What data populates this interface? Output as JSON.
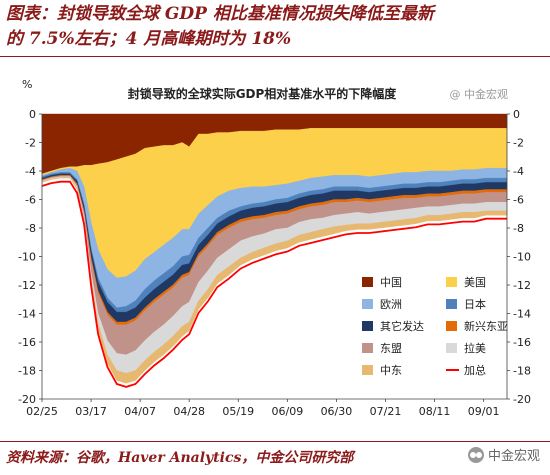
{
  "heading": {
    "line1": "图表：封锁导致全球 GDP 相比基准情况损失降低至最新",
    "line2": "的 7.5%左右；4 月高峰期时为 18%"
  },
  "source": "资料来源：谷歌，Haver Analytics，中金公司研究部",
  "brand": "中金宏观",
  "chart_data": {
    "type": "area",
    "title": "封锁导致的全球实际GDP相对基准水平的下降幅度",
    "watermark": "@ 中金宏观",
    "y_unit": "%",
    "ylim": [
      -20,
      0
    ],
    "yticks": [
      0,
      -2,
      -4,
      -6,
      -8,
      -10,
      -12,
      -14,
      -16,
      -18,
      -20
    ],
    "xticks": [
      "02/25",
      "03/17",
      "04/07",
      "04/28",
      "05/19",
      "06/09",
      "06/30",
      "07/21",
      "08/11",
      "09/01"
    ],
    "xticks_day": [
      0,
      21,
      42,
      63,
      84,
      105,
      126,
      147,
      168,
      189
    ],
    "x_days": [
      0,
      4,
      8,
      12,
      15,
      18,
      21,
      24,
      28,
      32,
      36,
      40,
      44,
      48,
      52,
      56,
      60,
      63,
      67,
      71,
      75,
      80,
      85,
      90,
      95,
      100,
      105,
      110,
      115,
      120,
      125,
      130,
      135,
      140,
      145,
      150,
      155,
      160,
      165,
      170,
      175,
      180,
      185,
      190,
      195,
      199
    ],
    "legend": [
      {
        "key": "china",
        "label": "中国",
        "color": "#8b2500"
      },
      {
        "key": "us",
        "label": "美国",
        "color": "#fcd04a"
      },
      {
        "key": "europe",
        "label": "欧洲",
        "color": "#8db4e2"
      },
      {
        "key": "japan",
        "label": "日本",
        "color": "#4f81bd"
      },
      {
        "key": "other_adv",
        "label": "其它发达",
        "color": "#1f3864"
      },
      {
        "key": "nie",
        "label": "新兴东亚",
        "color": "#e36c09"
      },
      {
        "key": "asean",
        "label": "东盟",
        "color": "#c0928a"
      },
      {
        "key": "latam",
        "label": "拉美",
        "color": "#d9d9d9"
      },
      {
        "key": "middle_east",
        "label": "中东",
        "color": "#e6b870"
      },
      {
        "key": "total",
        "label": "加总",
        "color": "#ff0000"
      }
    ],
    "series": [
      {
        "key": "china",
        "name": "中国",
        "values": [
          -4.2,
          -4.0,
          -3.8,
          -3.7,
          -3.7,
          -3.6,
          -3.6,
          -3.5,
          -3.4,
          -3.2,
          -3.0,
          -2.8,
          -2.4,
          -2.3,
          -2.2,
          -2.2,
          -2.0,
          -2.3,
          -1.4,
          -1.4,
          -1.3,
          -1.3,
          -1.2,
          -1.2,
          -1.2,
          -1.1,
          -1.1,
          -1.1,
          -1.0,
          -1.0,
          -1.0,
          -1.0,
          -1.0,
          -1.0,
          -1.0,
          -1.0,
          -1.0,
          -1.0,
          -1.0,
          -1.0,
          -1.0,
          -1.0,
          -1.0,
          -1.0,
          -1.0,
          -1.0
        ]
      },
      {
        "key": "us",
        "name": "美国",
        "values": [
          -0.1,
          -0.1,
          -0.1,
          -0.1,
          -0.3,
          -1.5,
          -4.0,
          -6.0,
          -7.5,
          -8.3,
          -8.4,
          -8.2,
          -7.8,
          -7.4,
          -7.0,
          -6.5,
          -6.1,
          -5.8,
          -5.6,
          -5.0,
          -4.5,
          -4.1,
          -4.0,
          -3.9,
          -3.9,
          -3.9,
          -3.8,
          -3.6,
          -3.5,
          -3.4,
          -3.3,
          -3.3,
          -3.3,
          -3.4,
          -3.3,
          -3.2,
          -3.1,
          -3.1,
          -3.0,
          -3.0,
          -3.0,
          -2.9,
          -2.9,
          -2.8,
          -2.8,
          -2.8
        ]
      },
      {
        "key": "europe",
        "name": "欧洲",
        "values": [
          -0.1,
          -0.1,
          -0.2,
          -0.3,
          -0.6,
          -1.2,
          -1.8,
          -2.0,
          -2.0,
          -2.1,
          -2.1,
          -2.1,
          -2.1,
          -2.0,
          -2.0,
          -2.0,
          -1.9,
          -1.8,
          -1.7,
          -1.6,
          -1.5,
          -1.4,
          -1.3,
          -1.2,
          -1.1,
          -1.0,
          -1.0,
          -0.9,
          -0.9,
          -0.9,
          -0.8,
          -0.8,
          -0.8,
          -0.8,
          -0.8,
          -0.8,
          -0.8,
          -0.8,
          -0.8,
          -0.8,
          -0.7,
          -0.7,
          -0.7,
          -0.7,
          -0.7,
          -0.7
        ]
      },
      {
        "key": "japan",
        "name": "日本",
        "values": [
          -0.1,
          -0.1,
          -0.1,
          -0.1,
          -0.1,
          -0.2,
          -0.2,
          -0.3,
          -0.3,
          -0.3,
          -0.4,
          -0.5,
          -0.6,
          -0.6,
          -0.6,
          -0.6,
          -0.6,
          -0.6,
          -0.5,
          -0.5,
          -0.4,
          -0.4,
          -0.3,
          -0.3,
          -0.3,
          -0.3,
          -0.3,
          -0.3,
          -0.3,
          -0.3,
          -0.3,
          -0.3,
          -0.3,
          -0.3,
          -0.3,
          -0.3,
          -0.3,
          -0.3,
          -0.3,
          -0.3,
          -0.3,
          -0.3,
          -0.3,
          -0.3,
          -0.3,
          -0.3
        ]
      },
      {
        "key": "other_adv",
        "name": "其它发达",
        "values": [
          -0.1,
          -0.1,
          -0.1,
          -0.1,
          -0.2,
          -0.3,
          -0.5,
          -0.6,
          -0.7,
          -0.7,
          -0.7,
          -0.7,
          -0.7,
          -0.7,
          -0.7,
          -0.7,
          -0.7,
          -0.6,
          -0.6,
          -0.6,
          -0.6,
          -0.6,
          -0.6,
          -0.6,
          -0.6,
          -0.6,
          -0.6,
          -0.6,
          -0.6,
          -0.6,
          -0.6,
          -0.6,
          -0.5,
          -0.5,
          -0.5,
          -0.5,
          -0.5,
          -0.5,
          -0.5,
          -0.5,
          -0.5,
          -0.5,
          -0.5,
          -0.5,
          -0.5,
          -0.5
        ]
      },
      {
        "key": "nie",
        "name": "新兴东亚",
        "values": [
          -0.05,
          -0.05,
          -0.05,
          -0.05,
          -0.1,
          -0.1,
          -0.2,
          -0.2,
          -0.2,
          -0.2,
          -0.2,
          -0.2,
          -0.2,
          -0.2,
          -0.2,
          -0.2,
          -0.2,
          -0.2,
          -0.2,
          -0.2,
          -0.2,
          -0.2,
          -0.2,
          -0.2,
          -0.2,
          -0.2,
          -0.2,
          -0.2,
          -0.2,
          -0.2,
          -0.2,
          -0.2,
          -0.2,
          -0.2,
          -0.2,
          -0.2,
          -0.2,
          -0.2,
          -0.2,
          -0.2,
          -0.2,
          -0.2,
          -0.2,
          -0.2,
          -0.2,
          -0.2
        ]
      },
      {
        "key": "asean",
        "name": "东盟",
        "values": [
          -0.05,
          -0.05,
          -0.05,
          -0.05,
          -0.1,
          -0.3,
          -0.8,
          -1.4,
          -1.8,
          -2.0,
          -2.1,
          -2.1,
          -2.1,
          -2.1,
          -2.1,
          -2.0,
          -2.0,
          -1.9,
          -1.8,
          -1.7,
          -1.6,
          -1.5,
          -1.3,
          -1.2,
          -1.1,
          -1.0,
          -1.0,
          -0.9,
          -0.9,
          -0.9,
          -0.9,
          -0.8,
          -0.8,
          -0.8,
          -0.8,
          -0.8,
          -0.8,
          -0.7,
          -0.7,
          -0.7,
          -0.7,
          -0.7,
          -0.7,
          -0.7,
          -0.7,
          -0.7
        ]
      },
      {
        "key": "latam",
        "name": "拉美",
        "values": [
          -0.05,
          -0.05,
          -0.05,
          -0.05,
          -0.1,
          -0.2,
          -0.4,
          -0.7,
          -1.0,
          -1.2,
          -1.3,
          -1.4,
          -1.4,
          -1.4,
          -1.4,
          -1.4,
          -1.4,
          -1.4,
          -1.3,
          -1.3,
          -1.2,
          -1.2,
          -1.2,
          -1.1,
          -1.0,
          -1.0,
          -0.9,
          -0.9,
          -0.9,
          -0.8,
          -0.8,
          -0.8,
          -0.8,
          -0.7,
          -0.7,
          -0.7,
          -0.7,
          -0.7,
          -0.6,
          -0.6,
          -0.6,
          -0.6,
          -0.6,
          -0.6,
          -0.6,
          -0.6
        ]
      },
      {
        "key": "middle_east",
        "name": "中东",
        "values": [
          -0.05,
          -0.05,
          -0.05,
          -0.05,
          -0.1,
          -0.1,
          -0.3,
          -0.5,
          -0.6,
          -0.7,
          -0.7,
          -0.7,
          -0.7,
          -0.7,
          -0.7,
          -0.7,
          -0.7,
          -0.6,
          -0.6,
          -0.6,
          -0.6,
          -0.6,
          -0.5,
          -0.5,
          -0.5,
          -0.5,
          -0.5,
          -0.5,
          -0.5,
          -0.5,
          -0.5,
          -0.4,
          -0.4,
          -0.4,
          -0.4,
          -0.4,
          -0.4,
          -0.4,
          -0.4,
          -0.4,
          -0.4,
          -0.4,
          -0.4,
          -0.3,
          -0.3,
          -0.3
        ]
      }
    ]
  }
}
